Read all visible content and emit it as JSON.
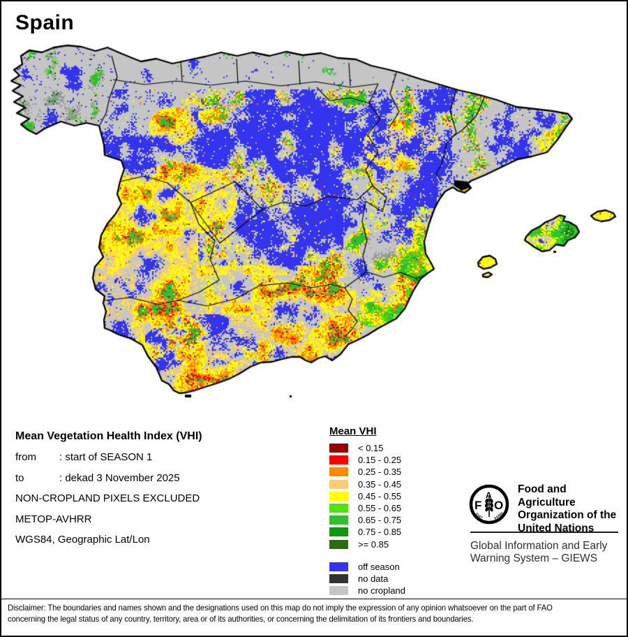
{
  "title": "Spain",
  "map": {
    "land_color": "#c5c5c5",
    "sea_color": "#ffffff",
    "boundary_color": "#000000",
    "masked_color": "#9a9a9a"
  },
  "info": {
    "heading": "Mean Vegetation Health Index (VHI)",
    "rows": [
      {
        "label": "from",
        "value": ": start of SEASON 1"
      },
      {
        "label": "to",
        "value": ": dekad 3 November 2025"
      }
    ],
    "lines": [
      "NON-CROPLAND PIXELS EXCLUDED",
      "METOP-AVHRR",
      "WGS84, Geographic Lat/Lon"
    ]
  },
  "legend": {
    "title": "Mean VHI",
    "classes": [
      {
        "label": "< 0.15",
        "color": "#990000"
      },
      {
        "label": "0.15 - 0.25",
        "color": "#ff0000"
      },
      {
        "label": "0.25 - 0.35",
        "color": "#ff8a00"
      },
      {
        "label": "0.35 - 0.45",
        "color": "#ffcc70"
      },
      {
        "label": "0.45 - 0.55",
        "color": "#ffff00"
      },
      {
        "label": "0.55 - 0.65",
        "color": "#4de600"
      },
      {
        "label": "0.65 - 0.75",
        "color": "#2fbf2f"
      },
      {
        "label": "0.75 - 0.85",
        "color": "#0a9a0a"
      },
      {
        "label": ">= 0.85",
        "color": "#2d6b0f"
      }
    ],
    "special": [
      {
        "label": "off season",
        "color": "#3333f0"
      },
      {
        "label": "no data",
        "color": "#333333"
      },
      {
        "label": "no cropland",
        "color": "#c5c5c5"
      }
    ]
  },
  "branding": {
    "logo_letters": [
      "F",
      "A",
      "O"
    ],
    "logo_motto": [
      "FIAT",
      "PANIS"
    ],
    "org_lines": [
      "Food and Agriculture",
      "Organization of the",
      "United Nations"
    ],
    "giews_lines": [
      "Global Information and Early",
      "Warning System – GIEWS"
    ]
  },
  "disclaimer": {
    "line1": "Disclaimer: The boundaries and names shown and the designations used on this map do not imply the expression of any opinion whatsoever on the part of FAO",
    "line2": "concerning the legal status of any country, territory, area or of its authorities, or concerning the delimitation of its frontiers and boundaries."
  }
}
